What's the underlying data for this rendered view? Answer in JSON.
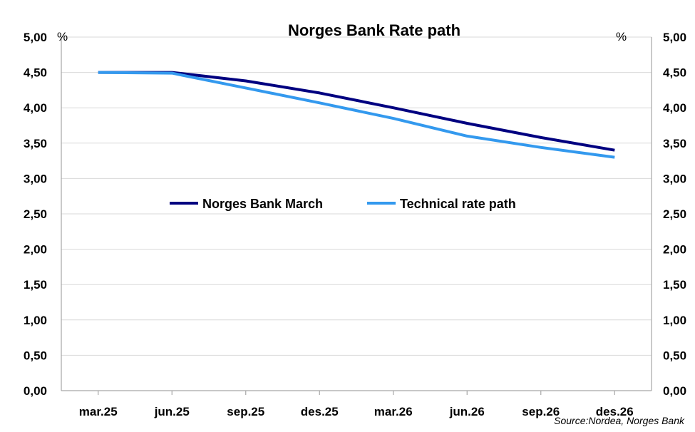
{
  "chart_data": {
    "type": "line",
    "title": "Norges Bank Rate path",
    "y_unit_left": "%",
    "y_unit_right": "%",
    "ylim": [
      0,
      5
    ],
    "y_ticks": [
      "0,00",
      "0,50",
      "1,00",
      "1,50",
      "2,00",
      "2,50",
      "3,00",
      "3,50",
      "4,00",
      "4,50",
      "5,00"
    ],
    "x_tick_labels": [
      "mar.25",
      "jun.25",
      "sep.25",
      "des.25",
      "mar.26",
      "jun.26",
      "sep.26",
      "des.26"
    ],
    "grid": true,
    "legend_position": "center",
    "series": [
      {
        "name": "Norges Bank March",
        "color": "#000080",
        "points": [
          [
            0,
            4.5
          ],
          [
            3,
            4.5
          ],
          [
            6,
            4.38
          ],
          [
            9,
            4.21
          ],
          [
            12,
            4.0
          ],
          [
            15,
            3.78
          ],
          [
            18,
            3.58
          ],
          [
            21,
            3.4
          ]
        ]
      },
      {
        "name": "Technical rate path",
        "color": "#3399ee",
        "points": [
          [
            0,
            4.5
          ],
          [
            3,
            4.49
          ],
          [
            6,
            4.28
          ],
          [
            9,
            4.07
          ],
          [
            12,
            3.85
          ],
          [
            15,
            3.6
          ],
          [
            18,
            3.44
          ],
          [
            21,
            3.3
          ]
        ]
      }
    ],
    "source": "Source:Nordea, Norges Bank"
  }
}
